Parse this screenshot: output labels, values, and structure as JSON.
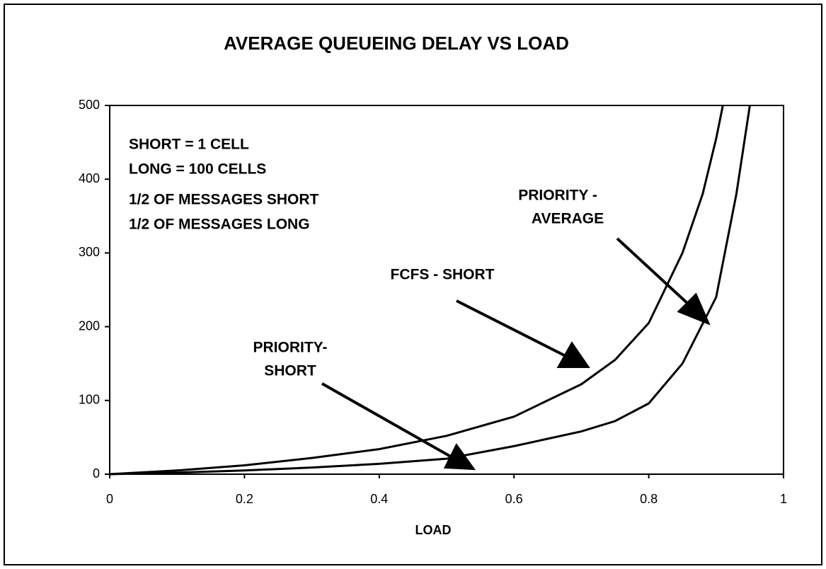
{
  "chart_data": {
    "type": "line",
    "title": "AVERAGE QUEUEING DELAY VS LOAD",
    "x_label": "LOAD",
    "xlim": [
      0,
      1
    ],
    "xticks": [
      0,
      0.2,
      0.4,
      0.6,
      0.8,
      1
    ],
    "ylim": [
      0,
      500
    ],
    "yticks": [
      0,
      100,
      200,
      300,
      400,
      500
    ],
    "grid": false,
    "series": [
      {
        "color": "#000000",
        "x": [
          0,
          0.1,
          0.2,
          0.3,
          0.4,
          0.5,
          0.6,
          0.7,
          0.75,
          0.8,
          0.85,
          0.88,
          0.9,
          0.91
        ],
        "values": [
          0,
          5,
          12,
          22,
          34,
          52,
          78,
          122,
          155,
          205,
          300,
          380,
          455,
          500
        ]
      },
      {
        "color": "#000000",
        "x": [
          0,
          0.1,
          0.2,
          0.3,
          0.4,
          0.5,
          0.6,
          0.7,
          0.75,
          0.8,
          0.85,
          0.9,
          0.93,
          0.95
        ],
        "values": [
          0,
          2,
          5,
          9,
          14,
          21,
          38,
          58,
          72,
          96,
          150,
          240,
          380,
          500
        ]
      }
    ],
    "notes": [
      "SHORT = 1 CELL",
      "LONG = 100 CELLS",
      "1/2 OF MESSAGES SHORT",
      "1/2 OF MESSAGES LONG"
    ],
    "annotations": [
      {
        "text": [
          "PRIORITY -",
          "AVERAGE"
        ]
      },
      {
        "text": [
          "FCFS - SHORT"
        ]
      },
      {
        "text": [
          "PRIORITY-",
          "SHORT"
        ]
      }
    ]
  }
}
